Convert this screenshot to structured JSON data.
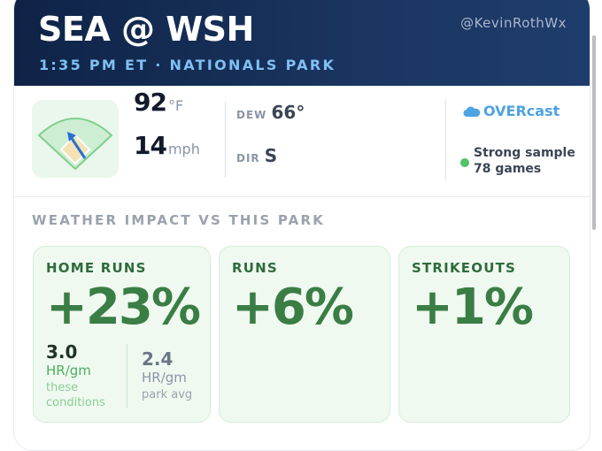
{
  "header": {
    "title": "SEA @ WSH",
    "subtitle": "1:35 PM ET · NATIONALS PARK",
    "handle": "@KevinRothWx"
  },
  "conditions": {
    "temperature": "92",
    "temperature_unit": "°F",
    "wind_speed": "14",
    "wind_unit": "mph",
    "dew_label": "DEW",
    "dew_value": "66°",
    "dir_label": "DIR",
    "dir_value": "S",
    "sky": "OVERcast",
    "sample_line1": "Strong sample",
    "sample_line2": "78 games"
  },
  "section_title": "WEATHER IMPACT VS THIS PARK",
  "impacts": [
    {
      "label": "HOME RUNS",
      "value": "+23%"
    },
    {
      "label": "RUNS",
      "value": "+6%"
    },
    {
      "label": "STRIKEOUTS",
      "value": "+1%"
    }
  ],
  "home_run_detail": {
    "these": {
      "value": "3.0",
      "unit": "HR/gm",
      "caption_line1": "these",
      "caption_line2": "conditions"
    },
    "park": {
      "value": "2.4",
      "unit": "HR/gm",
      "caption": "park avg"
    }
  }
}
